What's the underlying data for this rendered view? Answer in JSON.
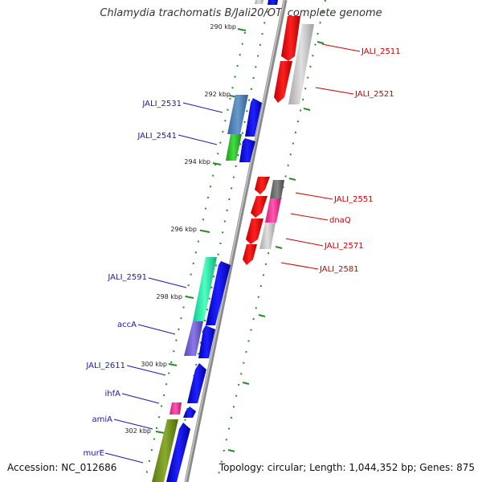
{
  "title": "Chlamydia trachomatis B/Jali20/OT, complete genome",
  "footer": {
    "accession": "Accession: NC_012686",
    "summary": "Topology: circular; Length: 1,044,352 bp; Genes: 875"
  },
  "colors": {
    "backbone": "#8a8a8a",
    "forward_cds": "#0000ee",
    "reverse_cds": "#ee0000",
    "tick_green": "#2a8a2a",
    "left_label": "#1a1aa8",
    "right_label": "#cc0000"
  },
  "ruler": [
    "290 kbp",
    "292 kbp",
    "294 kbp",
    "296 kbp",
    "298 kbp",
    "300 kbp",
    "302 kbp"
  ],
  "genes_left": [
    {
      "id": "JALI_2531"
    },
    {
      "id": "JALI_2541"
    },
    {
      "id": "JALI_2591"
    },
    {
      "id": "accA"
    },
    {
      "id": "JALI_2611"
    },
    {
      "id": "ihfA"
    },
    {
      "id": "amiA"
    },
    {
      "id": "murE"
    }
  ],
  "genes_right": [
    {
      "id": "JALI_2511"
    },
    {
      "id": "JALI_2521"
    },
    {
      "id": "JALI_2551"
    },
    {
      "id": "dnaQ"
    },
    {
      "id": "JALI_2571"
    },
    {
      "id": "JALI_2581"
    }
  ]
}
